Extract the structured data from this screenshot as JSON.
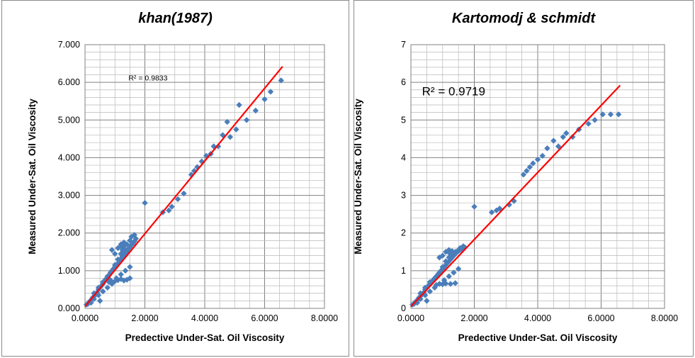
{
  "chart_data": [
    {
      "type": "scatter",
      "title": "khan(1987)",
      "xlabel": "Predective Under-Sat. Oil Viscosity",
      "ylabel": "Measured Under-Sat. Oil Viscosity",
      "xlim": [
        0,
        8
      ],
      "ylim": [
        0,
        7
      ],
      "x_ticks": [
        "0.0000",
        "2.0000",
        "4.0000",
        "6.0000",
        "8.0000"
      ],
      "y_ticks": [
        "0.000",
        "1.000",
        "2.000",
        "3.000",
        "4.000",
        "5.000",
        "6.000",
        "7.000"
      ],
      "grid": true,
      "point_color": "#4a7ebb",
      "trendline_color": "#ff0000",
      "trendline": {
        "x": [
          0.0,
          6.6
        ],
        "y": [
          0.05,
          6.42
        ]
      },
      "r2_label": "R² = 0.9833",
      "series": [
        {
          "x": [
            0.05,
            0.1,
            0.15,
            0.2,
            0.25,
            0.3,
            0.35,
            0.4,
            0.45,
            0.5,
            0.55,
            0.6,
            0.65,
            0.7,
            0.75,
            0.8,
            0.85,
            0.9,
            0.95,
            1.0,
            1.05,
            1.1,
            1.15,
            1.2,
            1.25,
            1.3,
            1.35,
            1.4,
            1.45,
            1.5,
            1.55,
            1.6,
            1.65,
            1.7,
            0.2,
            0.3,
            0.45,
            0.6,
            0.75,
            0.9,
            1.05,
            1.2,
            1.35,
            1.5,
            0.3,
            0.45,
            0.6,
            0.75,
            0.9,
            1.0,
            1.1,
            1.2,
            1.3,
            1.4,
            1.5,
            0.9,
            1.0,
            1.2,
            1.3,
            1.4,
            1.55,
            1.65,
            1.1,
            1.2,
            1.25,
            1.3,
            1.35,
            0.5,
            0.8,
            0.85,
            1.0,
            1.1,
            1.2,
            1.3,
            1.4,
            1.5,
            2.0,
            2.6,
            2.8,
            2.9,
            3.1,
            3.3,
            3.55,
            3.65,
            3.75,
            3.9,
            4.05,
            4.2,
            4.3,
            4.45,
            4.6,
            4.75,
            4.85,
            5.05,
            5.15,
            5.4,
            5.7,
            6.0,
            6.2,
            6.55
          ],
          "y": [
            0.1,
            0.12,
            0.18,
            0.22,
            0.28,
            0.32,
            0.38,
            0.42,
            0.5,
            0.55,
            0.6,
            0.65,
            0.72,
            0.78,
            0.82,
            0.88,
            0.95,
            1.0,
            1.05,
            1.1,
            1.15,
            1.2,
            1.28,
            1.32,
            1.38,
            1.42,
            1.48,
            1.52,
            1.58,
            1.62,
            1.68,
            1.72,
            1.78,
            1.85,
            0.15,
            0.25,
            0.35,
            0.45,
            0.55,
            0.65,
            0.8,
            0.9,
            1.0,
            1.1,
            0.4,
            0.55,
            0.7,
            0.85,
            1.0,
            1.15,
            1.3,
            1.45,
            1.6,
            1.7,
            1.8,
            1.55,
            1.45,
            1.65,
            1.75,
            1.5,
            1.9,
            1.95,
            1.6,
            1.7,
            1.55,
            1.65,
            1.5,
            0.2,
            0.7,
            0.75,
            0.72,
            0.75,
            0.78,
            0.74,
            0.76,
            0.8,
            2.8,
            2.55,
            2.6,
            2.7,
            2.9,
            3.05,
            3.55,
            3.65,
            3.75,
            3.9,
            4.05,
            4.1,
            4.3,
            4.3,
            4.6,
            4.95,
            4.55,
            4.75,
            5.4,
            5.0,
            5.25,
            5.55,
            5.75,
            6.05
          ]
        }
      ]
    },
    {
      "type": "scatter",
      "title": "Kartomodj & schmidt",
      "xlabel": "Predective Under-Sat. Oil Viscosity",
      "ylabel": "Measured Under-Sat. Oil Viscosity",
      "xlim": [
        0,
        8
      ],
      "ylim": [
        0,
        7
      ],
      "x_ticks": [
        "0.0000",
        "2.0000",
        "4.0000",
        "6.0000",
        "8.0000"
      ],
      "y_ticks": [
        "0",
        "1",
        "2",
        "3",
        "4",
        "5",
        "6",
        "7"
      ],
      "grid": true,
      "point_color": "#4a7ebb",
      "trendline_color": "#ff0000",
      "trendline": {
        "x": [
          0.0,
          6.6
        ],
        "y": [
          0.05,
          5.92
        ]
      },
      "r2_label": "R² = 0.9719",
      "series": [
        {
          "x": [
            0.05,
            0.1,
            0.15,
            0.2,
            0.25,
            0.3,
            0.35,
            0.4,
            0.45,
            0.5,
            0.55,
            0.6,
            0.65,
            0.7,
            0.75,
            0.8,
            0.85,
            0.9,
            0.95,
            1.0,
            1.05,
            1.1,
            1.15,
            1.2,
            1.25,
            1.3,
            1.35,
            1.4,
            1.45,
            1.5,
            1.55,
            1.6,
            1.65,
            1.7,
            0.2,
            0.3,
            0.45,
            0.6,
            0.75,
            0.9,
            1.05,
            1.2,
            1.35,
            1.5,
            0.3,
            0.45,
            0.6,
            0.75,
            0.9,
            1.0,
            1.1,
            1.2,
            1.3,
            1.4,
            1.5,
            0.9,
            1.0,
            1.2,
            1.3,
            1.4,
            1.55,
            1.65,
            1.1,
            1.2,
            1.25,
            1.3,
            1.35,
            0.5,
            0.8,
            0.9,
            1.0,
            1.1,
            1.25,
            1.4,
            2.0,
            2.55,
            2.7,
            2.8,
            3.1,
            3.25,
            3.55,
            3.65,
            3.75,
            3.85,
            4.0,
            4.15,
            4.3,
            4.5,
            4.65,
            4.8,
            4.9,
            5.1,
            5.3,
            5.6,
            5.8,
            6.05,
            6.3,
            6.55
          ],
          "y": [
            0.1,
            0.12,
            0.18,
            0.22,
            0.28,
            0.32,
            0.38,
            0.42,
            0.5,
            0.55,
            0.6,
            0.65,
            0.7,
            0.75,
            0.8,
            0.85,
            0.9,
            0.95,
            1.0,
            1.05,
            1.1,
            1.15,
            1.2,
            1.25,
            1.3,
            1.35,
            1.4,
            1.45,
            1.5,
            1.52,
            1.55,
            1.58,
            1.6,
            1.62,
            0.15,
            0.25,
            0.35,
            0.45,
            0.55,
            0.65,
            0.75,
            0.85,
            0.95,
            1.05,
            0.4,
            0.55,
            0.7,
            0.8,
            0.95,
            1.1,
            1.25,
            1.35,
            1.45,
            1.5,
            1.55,
            1.35,
            1.4,
            1.48,
            1.52,
            1.45,
            1.6,
            1.65,
            1.5,
            1.55,
            1.45,
            1.5,
            1.4,
            0.2,
            0.62,
            0.65,
            0.64,
            0.66,
            0.65,
            0.67,
            2.7,
            2.55,
            2.6,
            2.65,
            2.75,
            2.85,
            3.55,
            3.65,
            3.75,
            3.85,
            3.95,
            4.05,
            4.25,
            4.45,
            4.3,
            4.55,
            4.65,
            4.55,
            4.75,
            4.9,
            5.0,
            5.15,
            5.15,
            5.15
          ]
        }
      ]
    }
  ]
}
